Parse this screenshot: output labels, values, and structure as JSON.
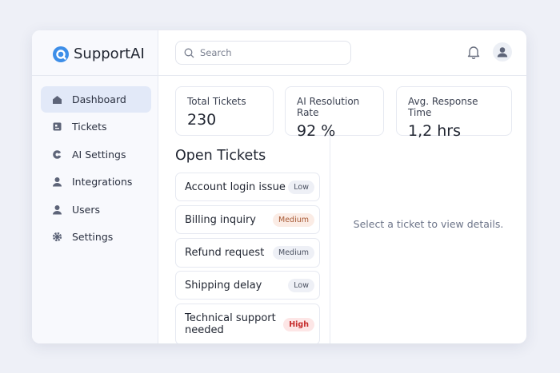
{
  "header": {
    "brand": "SupportAI",
    "search_placeholder": "Search"
  },
  "sidebar": {
    "items": [
      "Dashboard",
      "Tickets",
      "AI Settings",
      "Integrations",
      "Users",
      "Settings"
    ]
  },
  "stats": [
    {
      "label": "Total Tickets",
      "value": "230"
    },
    {
      "label": "AI Resolution Rate",
      "value": "92 %"
    },
    {
      "label": "Avg. Response Time",
      "value": "1,2 hrs"
    }
  ],
  "tickets": {
    "title": "Open Tickets",
    "items": [
      {
        "title": "Account login issue",
        "priority": "Low"
      },
      {
        "title": "Billing inquiry",
        "priority": "Medium"
      },
      {
        "title": "Refund request",
        "priority": "Medium"
      },
      {
        "title": "Shipping delay",
        "priority": "Low"
      },
      {
        "title": "Technical support needed",
        "priority": "High"
      }
    ]
  },
  "detail": {
    "placeholder": "Select a ticket to view details."
  }
}
